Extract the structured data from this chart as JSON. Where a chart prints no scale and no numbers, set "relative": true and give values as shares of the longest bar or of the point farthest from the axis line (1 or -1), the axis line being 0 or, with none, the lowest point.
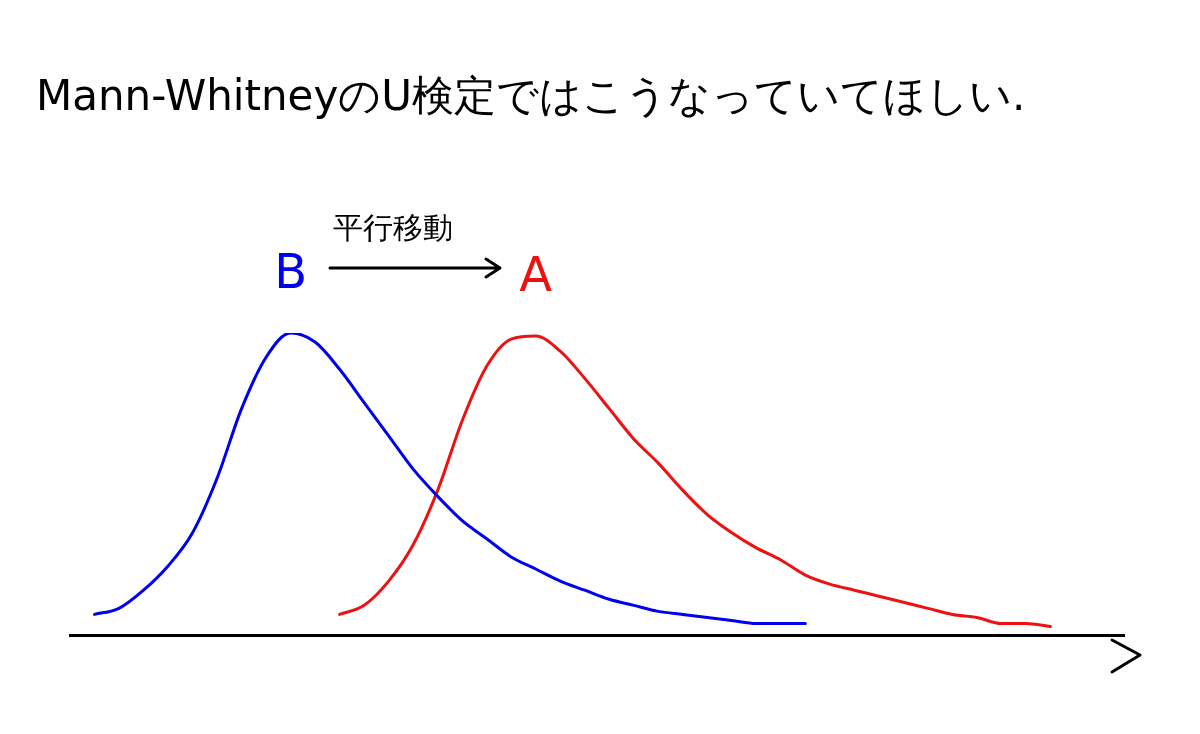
{
  "chart_data": {
    "type": "line",
    "title": "Mann-WhitneyのU検定ではこうなっていてほしい.",
    "annotations": [
      "平行移動"
    ],
    "relative": true,
    "grid": false,
    "legend": false,
    "marker": "none",
    "categories": [
      null,
      null,
      null,
      null,
      null,
      null,
      null,
      null,
      null,
      null,
      null,
      null,
      null,
      null,
      null,
      null,
      null,
      null,
      null,
      null,
      null,
      null,
      null,
      null,
      null,
      null,
      null,
      null,
      null,
      null,
      null,
      null,
      null,
      null,
      null,
      null,
      null,
      null,
      null,
      null,
      null,
      null,
      null,
      null
    ],
    "series": [
      {
        "name": "B",
        "color": "#0000ee",
        "values": [
          null,
          0.07,
          0.09,
          0.15,
          0.23,
          0.34,
          0.52,
          0.75,
          0.92,
          1.0,
          0.97,
          0.88,
          0.77,
          0.66,
          0.55,
          0.46,
          0.38,
          0.32,
          0.26,
          0.22,
          0.18,
          0.15,
          0.12,
          0.1,
          0.08,
          0.07,
          0.06,
          0.05,
          0.04,
          0.04,
          0.04,
          null,
          null,
          null,
          null,
          null,
          null,
          null,
          null,
          null,
          null,
          null,
          null,
          null
        ]
      },
      {
        "name": "A",
        "color": "#ee1111",
        "values": [
          null,
          null,
          null,
          null,
          null,
          null,
          null,
          null,
          null,
          null,
          null,
          0.07,
          0.1,
          0.18,
          0.3,
          0.48,
          0.71,
          0.89,
          0.98,
          0.99,
          0.94,
          0.85,
          0.75,
          0.65,
          0.57,
          0.48,
          0.4,
          0.34,
          0.29,
          0.25,
          0.2,
          0.17,
          0.15,
          0.13,
          0.11,
          0.09,
          0.07,
          0.06,
          0.04,
          0.04,
          0.03,
          null,
          null,
          null
        ]
      }
    ]
  }
}
